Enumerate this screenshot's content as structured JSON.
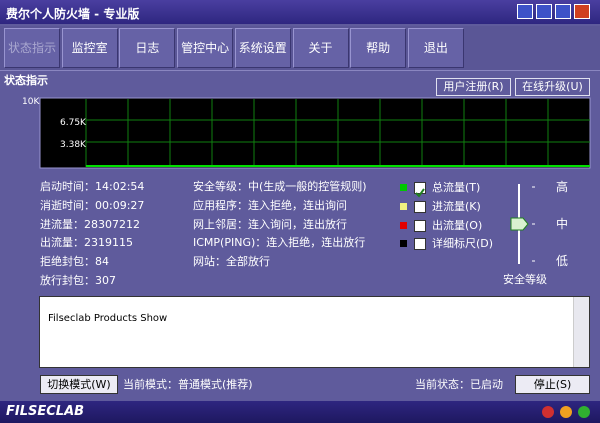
{
  "window": {
    "title": "费尔个人防火墙 - 专业版"
  },
  "toolbar": {
    "tabs": [
      "状态指示",
      "监控室",
      "日志",
      "管控中心",
      "系统设置",
      "关于",
      "帮助",
      "退出"
    ]
  },
  "section": {
    "title": "状态指示",
    "buttons": [
      "用户注册(R)",
      "在线升级(U)"
    ]
  },
  "graph": {
    "y_labels": [
      "10K",
      "6.75K",
      "3.38K"
    ]
  },
  "stats": {
    "left": [
      "启动时间：14:02:54",
      "消逝时间：00:09:27",
      "进流量：28307212",
      "出流量：2319115",
      "拒绝封包：84",
      "放行封包：307"
    ],
    "right": [
      "安全等级：中(生成一般的控管规则)",
      "应用程序：连入拒绝，连出询问",
      "网上邻居：连入询问，连出放行",
      "ICMP(PING)：连入拒绝，连出放行",
      "网站：全部放行"
    ]
  },
  "legend": [
    {
      "label": "总流量(T)",
      "color": "#00c800",
      "checked": true
    },
    {
      "label": "进流量(K)",
      "color": "#f0f080",
      "checked": false
    },
    {
      "label": "出流量(O)",
      "color": "#e00000",
      "checked": false
    },
    {
      "label": "详细标尺(D)",
      "color": "#000000",
      "checked": false
    }
  ],
  "security": {
    "levels": [
      "高",
      "中",
      "低"
    ],
    "label": "安全等级"
  },
  "news": {
    "text": "Filseclab Products Show"
  },
  "footer": {
    "mode_button": "切换模式(W)",
    "mode": "当前模式：普通模式(推荐)",
    "status": "当前状态：已启动",
    "stop_button": "停止(S)",
    "brand": "FILSECLAB"
  }
}
